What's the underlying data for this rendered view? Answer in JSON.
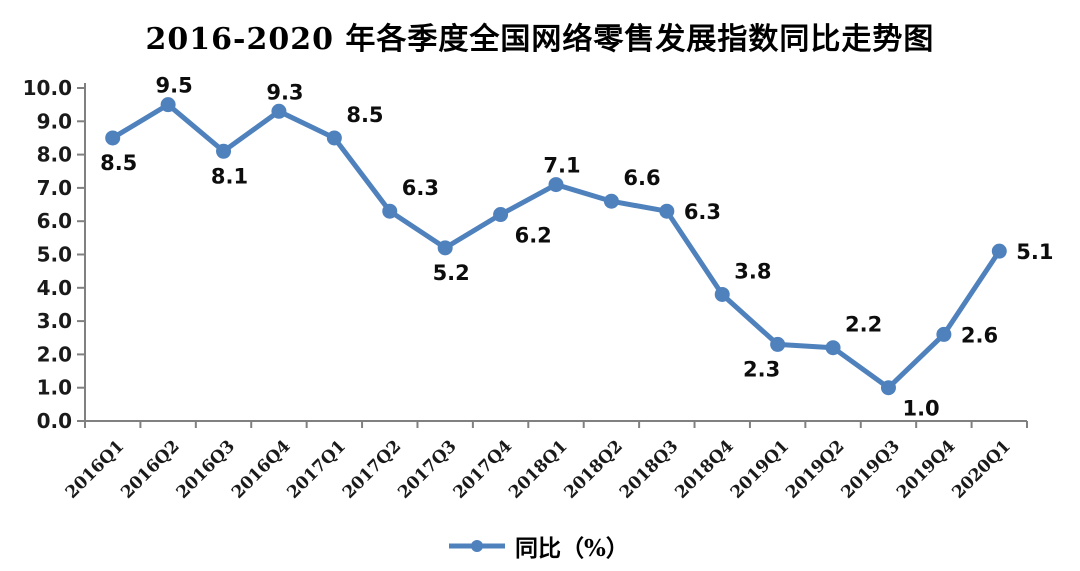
{
  "title": "2016-2020 年各季度全国网络零售发展指数同比走势图",
  "colors": {
    "line": "#4F81BD",
    "marker": "#4F81BD",
    "axis": "#808080",
    "text": "#1a1a1a"
  },
  "chart_data": {
    "type": "line",
    "title": "2016-2020 年各季度全国网络零售发展指数同比走势图",
    "categories": [
      "2016Q1",
      "2016Q2",
      "2016Q3",
      "2016Q4",
      "2017Q1",
      "2017Q2",
      "2017Q3",
      "2017Q4",
      "2018Q1",
      "2018Q2",
      "2018Q3",
      "2018Q4",
      "2019Q1",
      "2019Q2",
      "2019Q3",
      "2019Q4",
      "2020Q1"
    ],
    "series": [
      {
        "name": "同比（%）",
        "values": [
          8.5,
          9.5,
          8.1,
          9.3,
          8.5,
          6.3,
          5.2,
          6.2,
          7.1,
          6.6,
          6.3,
          3.8,
          2.3,
          2.2,
          1.0,
          2.6,
          5.1
        ]
      }
    ],
    "data_labels_shown": true,
    "xlabel": "",
    "ylabel": "",
    "ylim": [
      0,
      10
    ],
    "ytick_step": 1.0,
    "y_tick_labels": [
      "0.0",
      "1.0",
      "2.0",
      "3.0",
      "4.0",
      "5.0",
      "6.0",
      "7.0",
      "8.0",
      "9.0",
      "10.0"
    ],
    "grid": false,
    "legend_position": "bottom",
    "label_placements": [
      "below",
      "above",
      "below",
      "above",
      "above-right",
      "above-right",
      "below",
      "below-right",
      "above",
      "above-right",
      "right",
      "above-right",
      "below-left",
      "above-right",
      "below-right",
      "right",
      "right"
    ]
  },
  "legend": {
    "label": "同比（%）"
  }
}
